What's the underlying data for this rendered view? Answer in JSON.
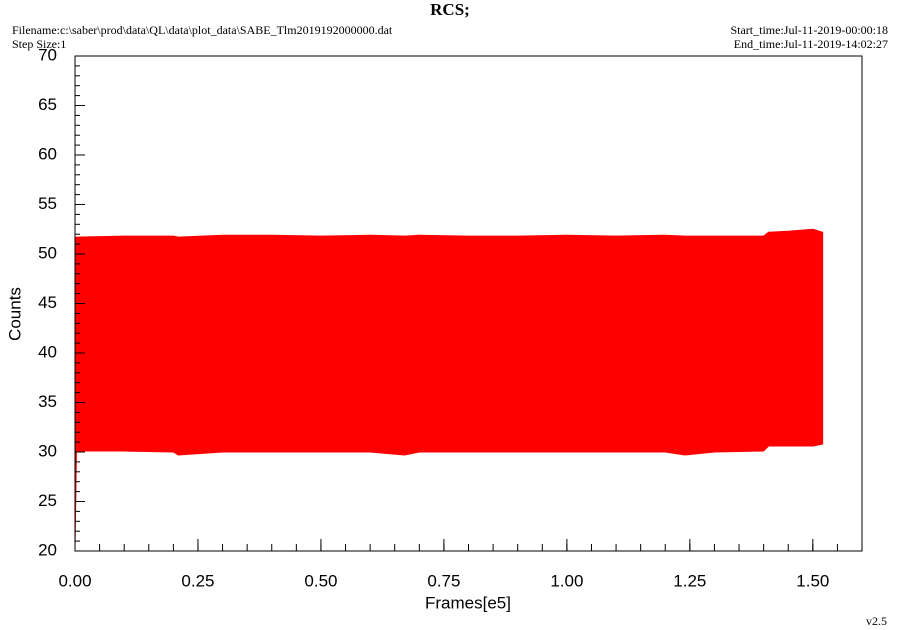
{
  "chart_data": {
    "type": "band",
    "title": "RCS;",
    "filename": "Filename:c:\\saber\\prod\\data\\QL\\data\\plot_data\\SABE_Tlm2019192000000.dat",
    "step_size": "Step Size:1",
    "start_time": "Start_time:Jul-11-2019-00:00:18",
    "end_time": "End_time:Jul-11-2019-14:02:27",
    "version": "v2.5",
    "xlabel": "Frames[e5]",
    "ylabel": "Counts",
    "color": "#ff0000",
    "x": [
      0,
      0.003,
      0.1,
      0.2,
      0.21,
      0.3,
      0.4,
      0.5,
      0.6,
      0.67,
      0.7,
      0.8,
      0.9,
      1.0,
      1.1,
      1.2,
      1.24,
      1.3,
      1.4,
      1.41,
      1.45,
      1.5,
      1.52
    ],
    "upper": [
      51.6,
      51.7,
      51.8,
      51.8,
      51.7,
      51.9,
      51.9,
      51.8,
      51.9,
      51.8,
      51.9,
      51.8,
      51.8,
      51.9,
      51.8,
      51.9,
      51.8,
      51.8,
      51.8,
      52.2,
      52.3,
      52.5,
      52.2
    ],
    "lower": [
      20,
      30.1,
      30.1,
      30.0,
      29.7,
      30.0,
      30.0,
      30.0,
      30.0,
      29.7,
      30.0,
      30.0,
      30.0,
      30.0,
      30.0,
      30.0,
      29.7,
      30.0,
      30.1,
      30.6,
      30.6,
      30.6,
      30.8
    ],
    "xlim": [
      0,
      1.6
    ],
    "ylim": [
      20,
      70
    ],
    "xticks": [
      {
        "value": 0,
        "label": "0.00"
      },
      {
        "value": 0.25,
        "label": "0.25"
      },
      {
        "value": 0.5,
        "label": "0.50"
      },
      {
        "value": 0.75,
        "label": "0.75"
      },
      {
        "value": 1,
        "label": "1.00"
      },
      {
        "value": 1.25,
        "label": "1.25"
      },
      {
        "value": 1.5,
        "label": "1.50"
      }
    ],
    "yticks": [
      20,
      25,
      30,
      35,
      40,
      45,
      50,
      55,
      60,
      65,
      70
    ],
    "x_minor_step": 0.05,
    "y_minor_step": 1
  }
}
